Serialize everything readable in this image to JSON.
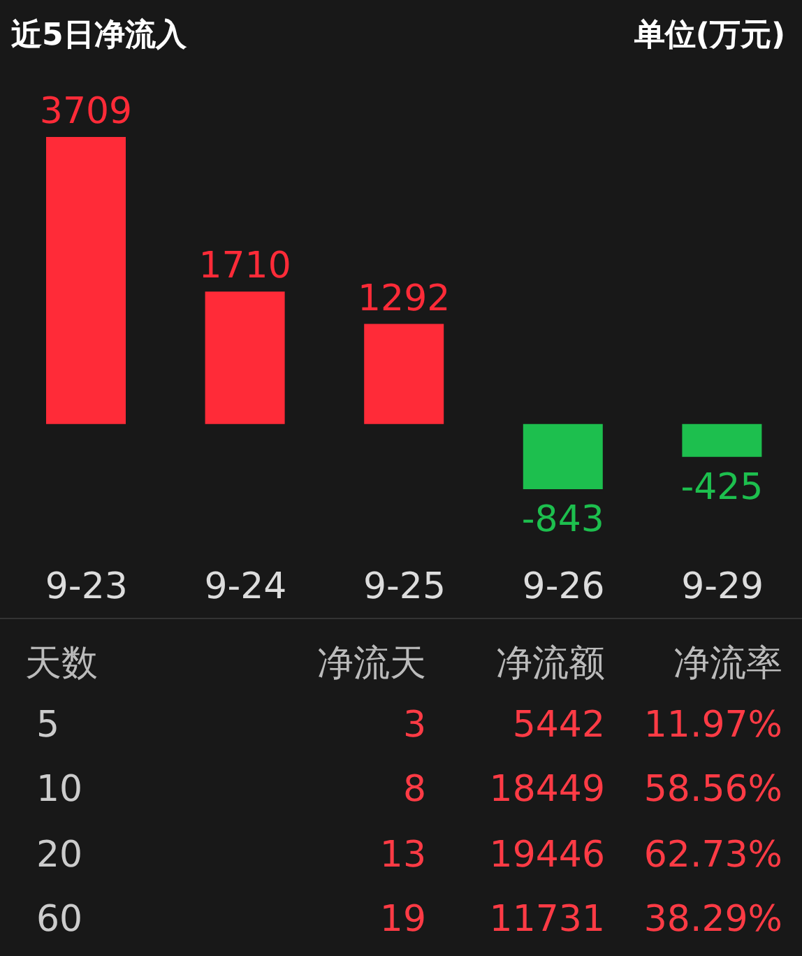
{
  "chart_data": [
    {
      "type": "bar",
      "title": "近5日净流入",
      "ylabel": "单位(万元)",
      "categories": [
        "9-23",
        "9-24",
        "9-25",
        "9-26",
        "9-29"
      ],
      "values": [
        3709,
        1710,
        1292,
        -843,
        -425
      ],
      "colors": [
        "#ff2b38",
        "#ff2b38",
        "#ff2b38",
        "#1dbf4e",
        "#1dbf4e"
      ],
      "data_labels": true
    },
    {
      "type": "other",
      "annotations": [
        "天数",
        "净流天",
        "净流额",
        "净流率",
        "5",
        "3",
        "5442",
        "11.97%",
        "10",
        "8",
        "18449",
        "58.56%",
        "20",
        "13",
        "19446",
        "62.73%",
        "60",
        "19",
        "11731",
        "38.29%"
      ]
    }
  ]
}
